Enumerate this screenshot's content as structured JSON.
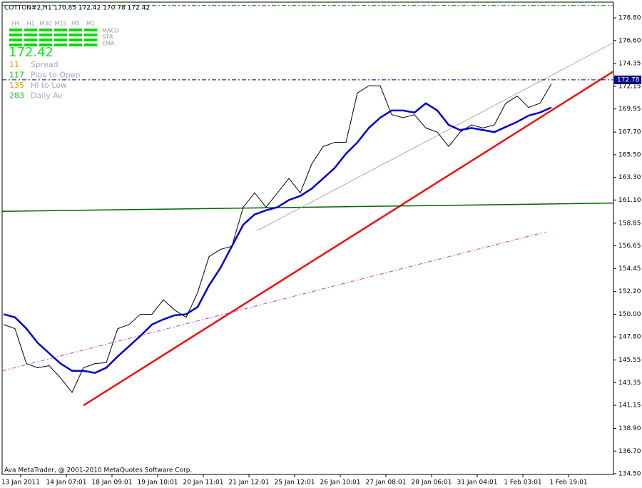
{
  "chart_data": {
    "type": "line",
    "header": "COTTON#2,H1  170.85 172.42 170.78 172.42",
    "timeframes": [
      "H4",
      "H1",
      "M30",
      "M15",
      "M5",
      "M1"
    ],
    "indicators": [
      "MACD",
      "STR",
      "EMA"
    ],
    "price": "172.42",
    "stats": [
      {
        "value": "11",
        "label": "Spread",
        "color": "#e0a000"
      },
      {
        "value": "117",
        "label": "Pips to Open",
        "color": "#22c322"
      },
      {
        "value": "135",
        "label": "Hi to Low",
        "color": "#e0a000"
      },
      {
        "value": "283",
        "label": "Daily Av",
        "color": "#22c322"
      }
    ],
    "copyright": "Ava MetaTrader, @ 2001-2010 MetaQuotes Software Corp.",
    "ask": {
      "value": 172.78,
      "label": "172.78"
    },
    "x": [
      0,
      4,
      8,
      12,
      16,
      20,
      24,
      28,
      32,
      36,
      40,
      44,
      48,
      52,
      56,
      60,
      64,
      68,
      72,
      76,
      80,
      84,
      88,
      92,
      96,
      100,
      104,
      108,
      112,
      116,
      120,
      124,
      128,
      132,
      136,
      140,
      144,
      148,
      152,
      156,
      160,
      164,
      168,
      172,
      176,
      180,
      184,
      188,
      192
    ],
    "series": [
      {
        "color": "#000000",
        "width": 1,
        "values": [
          149.0,
          148.6,
          145.2,
          144.8,
          145.0,
          143.8,
          142.4,
          144.8,
          145.2,
          145.3,
          148.6,
          149.0,
          150.0,
          150.0,
          151.4,
          150.4,
          149.7,
          152.1,
          155.6,
          156.3,
          156.6,
          160.4,
          161.8,
          160.4,
          161.8,
          163.2,
          161.8,
          164.6,
          166.3,
          166.7,
          166.7,
          171.5,
          172.2,
          172.2,
          169.4,
          169.1,
          169.4,
          168.1,
          167.7,
          166.3,
          167.7,
          168.4,
          168.1,
          168.4,
          170.5,
          171.2,
          170.1,
          170.5,
          172.4
        ]
      },
      {
        "color": "#0000cc",
        "width": 2.5,
        "values": [
          150.0,
          149.7,
          148.6,
          147.2,
          146.2,
          145.2,
          144.5,
          144.5,
          144.3,
          144.8,
          145.9,
          146.9,
          147.9,
          149.0,
          149.5,
          149.9,
          150.0,
          150.7,
          152.8,
          154.5,
          156.6,
          158.7,
          159.7,
          160.1,
          160.4,
          161.1,
          161.5,
          162.2,
          163.2,
          164.2,
          165.6,
          166.7,
          168.1,
          169.1,
          169.8,
          169.8,
          169.6,
          170.5,
          169.8,
          168.4,
          167.9,
          168.1,
          167.9,
          167.7,
          168.2,
          168.7,
          169.3,
          169.6,
          170.1
        ]
      }
    ],
    "lines": [
      {
        "x": [
          28,
          213.75
        ],
        "y": [
          141.14,
          173.6
        ],
        "color": "#ee1111",
        "width": 2.5,
        "dash": "none"
      },
      {
        "x": [
          -0.5,
          213.75
        ],
        "y": [
          160.0,
          160.8
        ],
        "color": "#006400",
        "width": 1.5,
        "dash": "none"
      },
      {
        "x": [
          88.75,
          213.75
        ],
        "y": [
          158.1,
          176.4
        ],
        "color": "#999999",
        "width": 0.8,
        "dash": "none"
      },
      {
        "x": [
          -0.5,
          190
        ],
        "y": [
          144.5,
          158.0
        ],
        "color": "#cc44cc",
        "width": 1,
        "dash": "6 3 2 3"
      },
      {
        "x": [
          -0.5,
          213.75
        ],
        "y": [
          180.0,
          180.0
        ],
        "color": "#008000",
        "width": 1,
        "dash": "6 3 2 3"
      }
    ],
    "xlim": [
      -0.5,
      213.75
    ],
    "ylim": [
      134.43,
      180.33
    ],
    "xticks": [
      {
        "value": 6,
        "label": "13 Jan 2011"
      },
      {
        "value": 22,
        "label": "14 Jan 07:01"
      },
      {
        "value": 38,
        "label": "18 Jan 09:01"
      },
      {
        "value": 54,
        "label": "19 Jan 10:01"
      },
      {
        "value": 70,
        "label": "20 Jan 11:01"
      },
      {
        "value": 86,
        "label": "21 Jan 12:01"
      },
      {
        "value": 102,
        "label": "25 Jan 12:01"
      },
      {
        "value": 118,
        "label": "26 Jan 10:01"
      },
      {
        "value": 134,
        "label": "27 Jan 08:01"
      },
      {
        "value": 150,
        "label": "28 Jan 06:01"
      },
      {
        "value": 166,
        "label": "31 Jan 04:01"
      },
      {
        "value": 182,
        "label": "1 Feb 03:01"
      },
      {
        "value": 198,
        "label": "1 Feb 19:01"
      }
    ],
    "yticks": [
      {
        "value": 178.8,
        "label": "178.80"
      },
      {
        "value": 176.6,
        "label": "176.60"
      },
      {
        "value": 174.35,
        "label": "174.35"
      },
      {
        "value": 172.15,
        "label": "172.15"
      },
      {
        "value": 169.95,
        "label": "169.95"
      },
      {
        "value": 167.7,
        "label": "167.70"
      },
      {
        "value": 165.5,
        "label": "165.50"
      },
      {
        "value": 163.3,
        "label": "163.30"
      },
      {
        "value": 161.1,
        "label": "161.10"
      },
      {
        "value": 158.85,
        "label": "158.85"
      },
      {
        "value": 156.65,
        "label": "156.65"
      },
      {
        "value": 154.45,
        "label": "154.45"
      },
      {
        "value": 152.2,
        "label": "152.20"
      },
      {
        "value": 150,
        "label": "150.00"
      },
      {
        "value": 147.8,
        "label": "147.80"
      },
      {
        "value": 145.55,
        "label": "145.55"
      },
      {
        "value": 143.35,
        "label": "143.35"
      },
      {
        "value": 141.15,
        "label": "141.15"
      },
      {
        "value": 138.9,
        "label": "138.90"
      },
      {
        "value": 136.7,
        "label": "136.70"
      },
      {
        "value": 134.5,
        "label": "134.50"
      }
    ]
  }
}
